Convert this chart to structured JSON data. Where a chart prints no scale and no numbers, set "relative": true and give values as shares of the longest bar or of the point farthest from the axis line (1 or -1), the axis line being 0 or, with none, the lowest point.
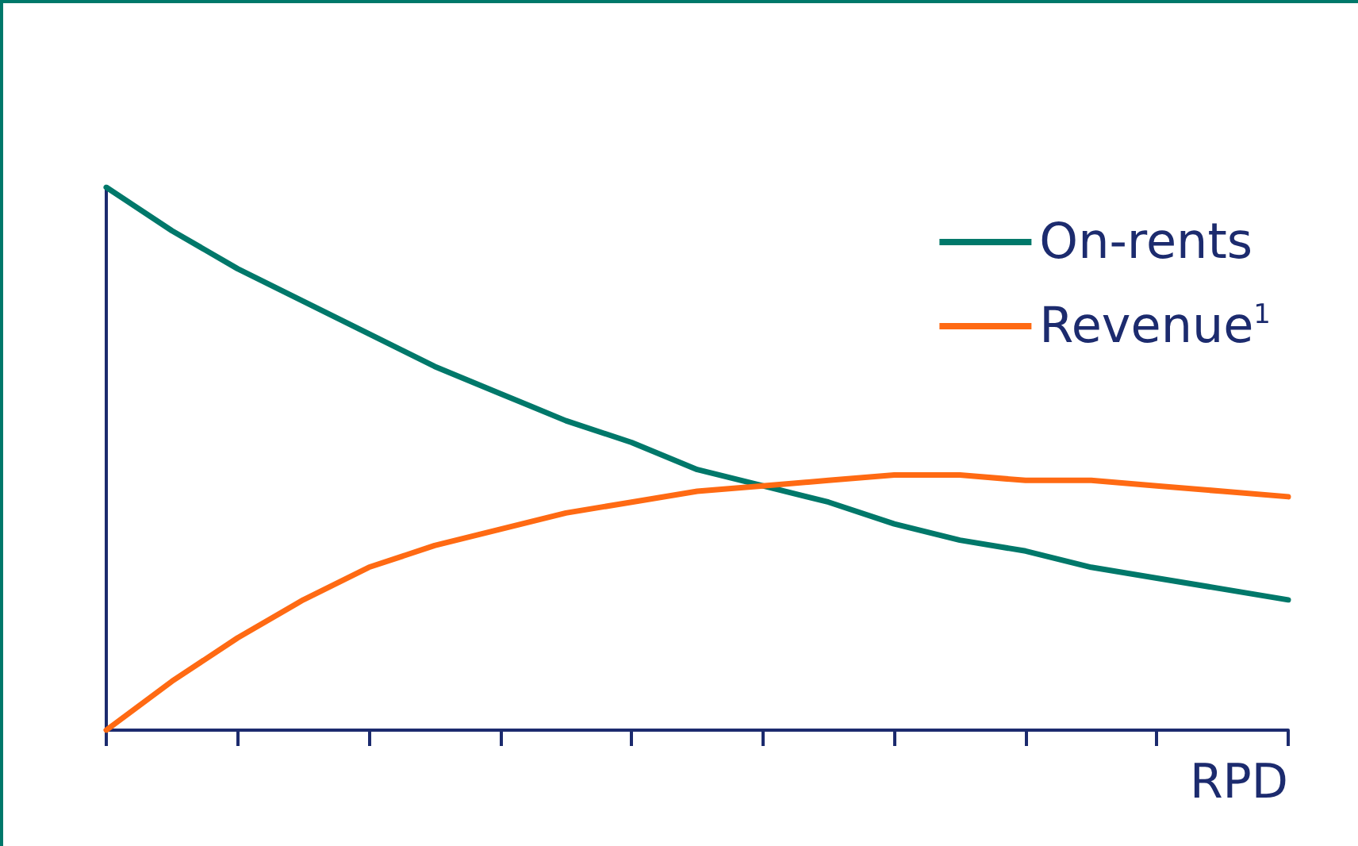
{
  "chart_data": {
    "type": "line",
    "relative": true,
    "xlabel": "RPD",
    "legend": "top right",
    "grid": false,
    "marker": "none",
    "line_style": "solid",
    "categories": [
      null,
      null,
      null,
      null,
      null,
      null,
      null,
      null,
      null,
      null,
      null,
      null,
      null,
      null,
      null,
      null,
      null,
      null,
      null
    ],
    "series": [
      {
        "name": "On-rents",
        "color": "#00786a",
        "values": [
          1,
          0.92,
          0.85,
          0.79,
          0.73,
          0.67,
          0.62,
          0.57,
          0.53,
          0.48,
          0.45,
          0.42,
          0.38,
          0.35,
          0.33,
          0.3,
          0.28,
          0.26,
          0.24
        ]
      },
      {
        "name": "Revenue$^{1}$",
        "color": "#ff6a13",
        "values": [
          0,
          0.09,
          0.17,
          0.24,
          0.3,
          0.34,
          0.37,
          0.4,
          0.42,
          0.44,
          0.45,
          0.46,
          0.47,
          0.47,
          0.46,
          0.46,
          0.45,
          0.44,
          0.43
        ]
      }
    ]
  }
}
